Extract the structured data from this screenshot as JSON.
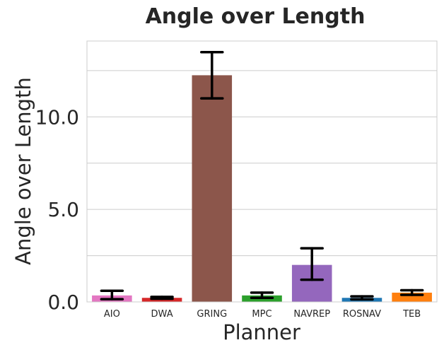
{
  "chart_data": {
    "type": "bar",
    "title": "Angle over Length",
    "xlabel": "Planner",
    "ylabel": "Angle over Length",
    "categories": [
      "AIO",
      "DWA",
      "GRING",
      "MPC",
      "NAVREP",
      "ROSNAV",
      "TEB"
    ],
    "values": [
      0.35,
      0.22,
      12.25,
      0.35,
      2.0,
      0.22,
      0.5
    ],
    "error_low": [
      0.15,
      0.17,
      11.0,
      0.22,
      1.2,
      0.14,
      0.38
    ],
    "error_high": [
      0.6,
      0.27,
      13.5,
      0.5,
      2.9,
      0.3,
      0.63
    ],
    "colors": [
      "#e377c2",
      "#d62728",
      "#8c564b",
      "#2ca02c",
      "#9467bd",
      "#1f77b4",
      "#ff7f0e"
    ],
    "yticks": [
      0.0,
      5.0,
      10.0
    ],
    "ytick_labels": [
      "0.0",
      "5.0",
      "10.0"
    ],
    "ylim": [
      0,
      14.1
    ],
    "grid": true,
    "gridline_values": [
      0,
      2.5,
      5.0,
      7.5,
      10.0,
      12.5
    ],
    "style": {
      "grid_color": "#cccccc",
      "frame_color": "#cccccc",
      "error_color": "#000000"
    }
  }
}
